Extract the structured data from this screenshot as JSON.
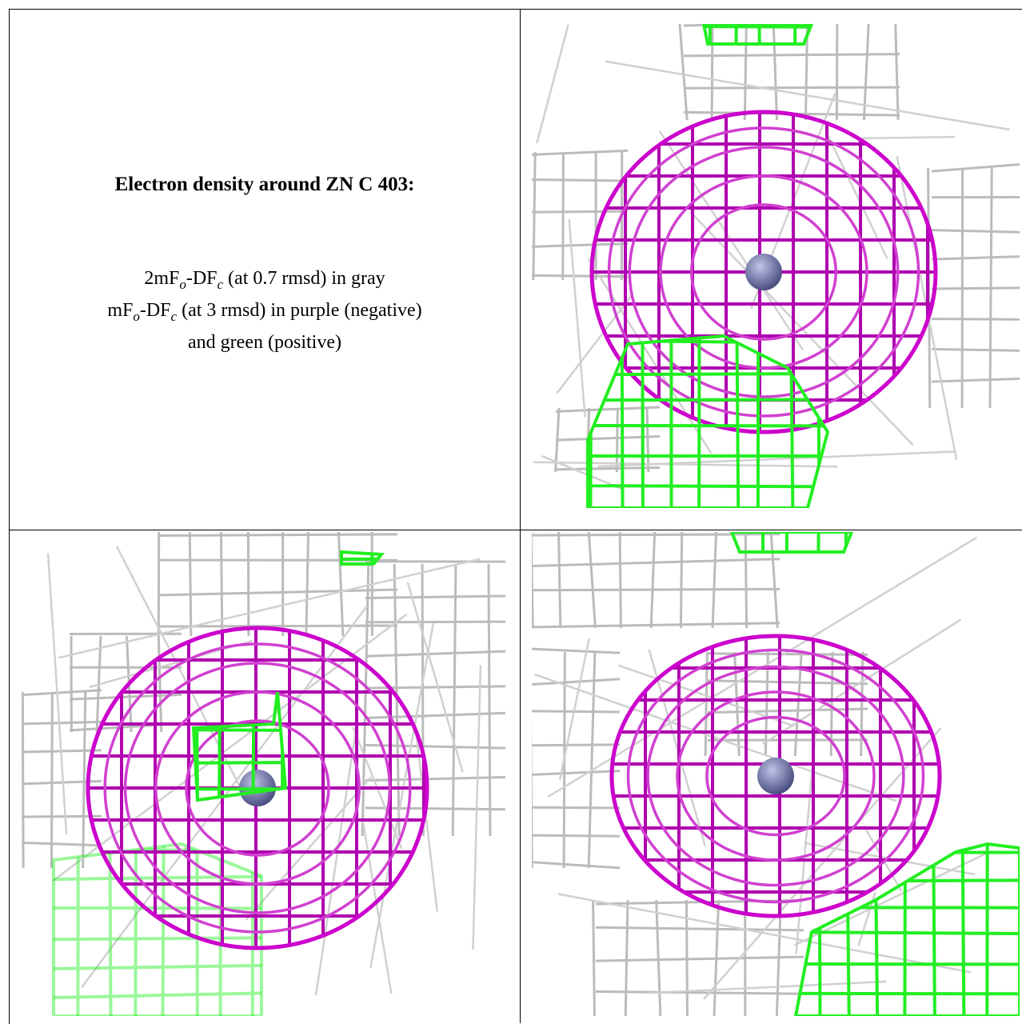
{
  "caption": {
    "title": "Electron density around ZN C 403:",
    "lines": [
      [
        {
          "text": "2mF"
        },
        {
          "sub": "o"
        },
        {
          "text": "-DF"
        },
        {
          "sub": "c"
        },
        {
          "text": " (at 0.7 rmsd) in gray"
        }
      ],
      [
        {
          "text": "mF"
        },
        {
          "sub": "o"
        },
        {
          "text": "-DF"
        },
        {
          "sub": "c"
        },
        {
          "text": " (at 3 rmsd) in purple (negative)"
        }
      ],
      [
        {
          "text": "and green (positive)"
        }
      ]
    ]
  }
}
